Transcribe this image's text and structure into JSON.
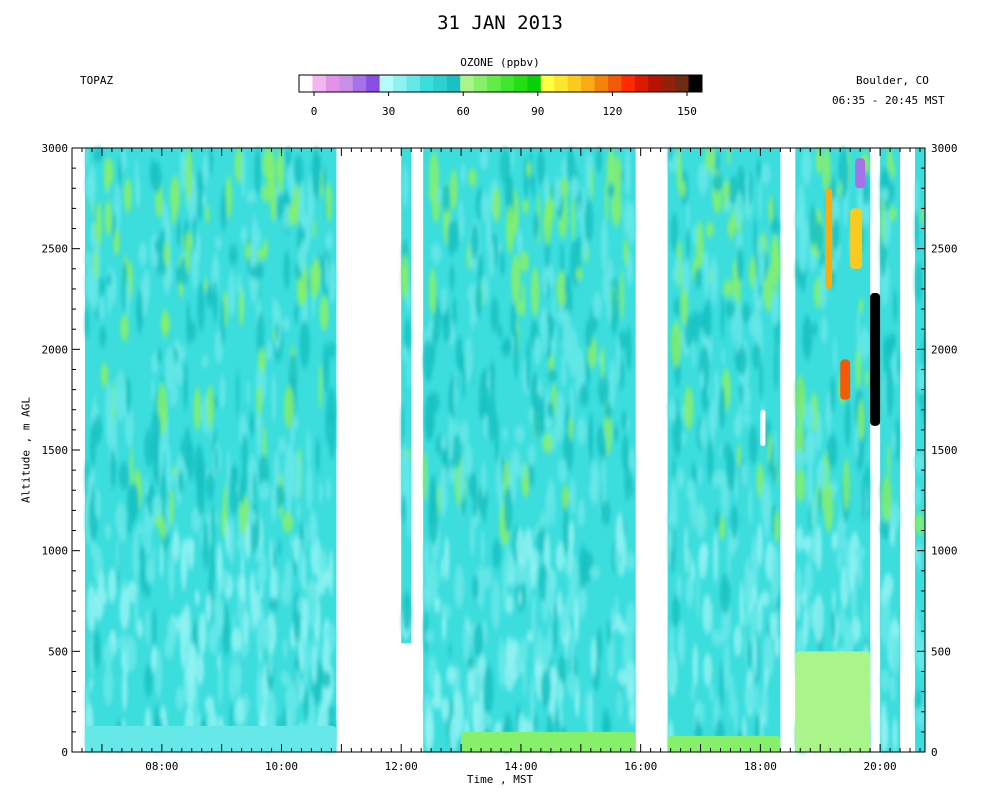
{
  "header": {
    "title": "31 JAN 2013",
    "site_left": "TOPAZ",
    "site_right": "Boulder, CO",
    "time_range": "06:35 - 20:45 MST"
  },
  "colorbar": {
    "label": "OZONE (ppbv)",
    "ticks": [
      0,
      30,
      60,
      90,
      120,
      150
    ],
    "colors": [
      "#ffffff",
      "#f2b6f2",
      "#e393e6",
      "#c98fe8",
      "#a772e8",
      "#8a4fe2",
      "#b4fdfd",
      "#8ff2f2",
      "#66e8e8",
      "#3cdddd",
      "#2cd0d0",
      "#19c2c2",
      "#a9f58a",
      "#86f06a",
      "#61ec4a",
      "#3fe62f",
      "#22de12",
      "#08d008",
      "#ffff44",
      "#fde62e",
      "#fbca1e",
      "#f9ab14",
      "#f5830a",
      "#f25a08",
      "#ff2a00",
      "#dc1a00",
      "#b81200",
      "#92200a",
      "#6e2a12",
      "#000000"
    ]
  },
  "chart_data": {
    "type": "heatmap",
    "title": "31 JAN 2013",
    "variable": "OZONE (ppbv)",
    "xlabel": "Time , MST",
    "ylabel": "Altitude , m AGL",
    "x_ticks": [
      "08:00",
      "10:00",
      "12:00",
      "14:00",
      "16:00",
      "18:00",
      "20:00"
    ],
    "x_range_hours": [
      6.5,
      20.75
    ],
    "y_ticks": [
      0,
      500,
      1000,
      1500,
      2000,
      2500,
      3000
    ],
    "ylim": [
      0,
      3000
    ],
    "color_range": [
      0,
      150
    ],
    "background_ozone_ppbv": 45,
    "data_segments": [
      {
        "start": "06:43",
        "end": "10:55",
        "top_m": 3000
      },
      {
        "start": "12:00",
        "end": "12:10",
        "top_m": 3000,
        "bottom_m": 540
      },
      {
        "start": "12:22",
        "end": "15:55",
        "top_m": 3000
      },
      {
        "start": "16:27",
        "end": "18:20",
        "top_m": 3000
      },
      {
        "start": "18:35",
        "end": "19:50",
        "top_m": 3000
      },
      {
        "start": "20:00",
        "end": "20:20",
        "top_m": 3000
      },
      {
        "start": "20:35",
        "end": "20:45",
        "top_m": 3000
      }
    ],
    "features": [
      {
        "label": "surface layer",
        "time_start": "06:43",
        "time_end": "10:55",
        "alt_bottom": 0,
        "alt_top": 130,
        "ozone_ppbv": 42
      },
      {
        "label": "enhanced near-surface ozone",
        "time_start": "13:00",
        "time_end": "15:55",
        "alt_bottom": 0,
        "alt_top": 100,
        "ozone_ppbv": 65
      },
      {
        "label": "enhanced near-surface ozone",
        "time_start": "16:27",
        "time_end": "18:20",
        "alt_bottom": 0,
        "alt_top": 80,
        "ozone_ppbv": 68
      },
      {
        "label": "enhanced near-surface ozone",
        "time_start": "18:35",
        "time_end": "19:50",
        "alt_bottom": 0,
        "alt_top": 500,
        "ozone_ppbv": 62
      },
      {
        "label": "high-ozone filament",
        "time_start": "19:05",
        "time_end": "19:12",
        "alt_bottom": 2300,
        "alt_top": 2800,
        "ozone_ppbv": 108
      },
      {
        "label": "high-ozone filament",
        "time_start": "19:20",
        "time_end": "19:30",
        "alt_bottom": 1750,
        "alt_top": 1950,
        "ozone_ppbv": 115
      },
      {
        "label": "high-ozone filament",
        "time_start": "19:30",
        "time_end": "19:42",
        "alt_bottom": 2400,
        "alt_top": 2700,
        "ozone_ppbv": 100
      },
      {
        "label": "saturated region",
        "time_start": "19:50",
        "time_end": "20:00",
        "alt_bottom": 1620,
        "alt_top": 2280,
        "ozone_ppbv": 150
      },
      {
        "label": "low-ozone pocket",
        "time_start": "18:00",
        "time_end": "18:05",
        "alt_bottom": 1520,
        "alt_top": 1700,
        "ozone_ppbv": 3
      },
      {
        "label": "low-ozone pocket",
        "time_start": "19:35",
        "time_end": "19:45",
        "alt_bottom": 2800,
        "alt_top": 2950,
        "ozone_ppbv": 20
      }
    ]
  }
}
